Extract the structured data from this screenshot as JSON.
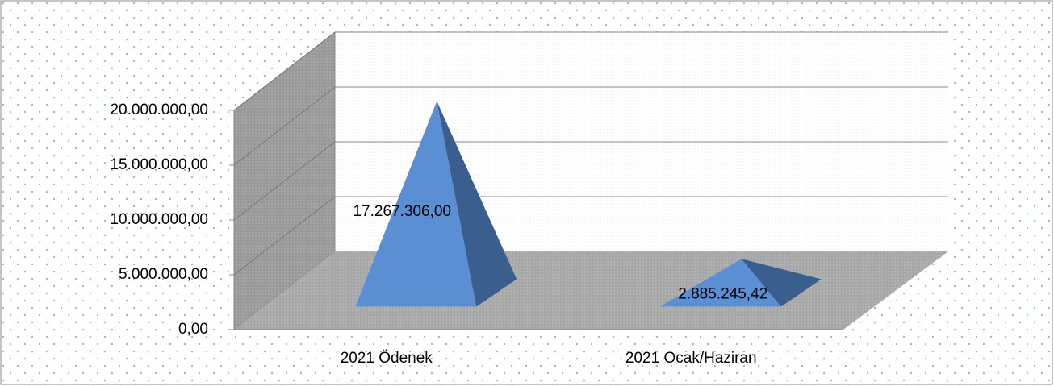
{
  "chart_data": {
    "type": "pyramid3d",
    "categories": [
      "2021 Ödenek",
      "2021 Ocak/Haziran"
    ],
    "values": [
      17267306,
      2885245.42
    ],
    "value_labels": [
      "17.267.306,00",
      "2.885.245,42"
    ],
    "colors": [
      "#5b8fd4",
      "#3a5f8e"
    ],
    "ylim": [
      0,
      20000000
    ],
    "yticks": [
      {
        "value": 0,
        "label": "0,00"
      },
      {
        "value": 5000000,
        "label": "5.000.000,00"
      },
      {
        "value": 10000000,
        "label": "10.000.000,00"
      },
      {
        "value": 15000000,
        "label": "15.000.000,00"
      },
      {
        "value": 20000000,
        "label": "20.000.000,00"
      }
    ],
    "grid": true
  }
}
